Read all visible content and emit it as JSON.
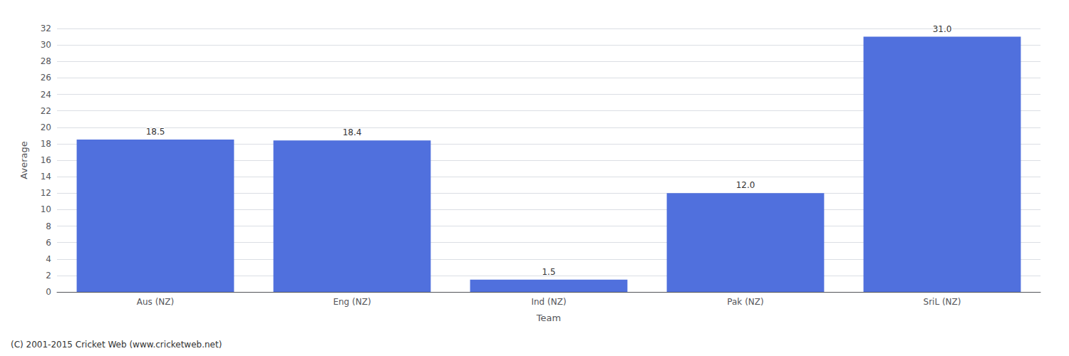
{
  "chart_data": {
    "type": "bar",
    "categories": [
      "Aus (NZ)",
      "Eng (NZ)",
      "Ind (NZ)",
      "Pak (NZ)",
      "SriL (NZ)"
    ],
    "values": [
      18.5,
      18.4,
      1.5,
      12.0,
      31.0
    ],
    "value_labels": [
      "18.5",
      "18.4",
      "1.5",
      "12.0",
      "31.0"
    ],
    "data_labels": true,
    "xlabel": "Team",
    "ylabel": "Average",
    "ylim": [
      0,
      32
    ],
    "yticks": [
      0,
      2,
      4,
      6,
      8,
      10,
      12,
      14,
      16,
      18,
      20,
      22,
      24,
      26,
      28,
      30,
      32
    ],
    "grid": true,
    "annotations": [
      "(C) 2001-2015 Cricket Web (www.cricketweb.net)"
    ]
  }
}
